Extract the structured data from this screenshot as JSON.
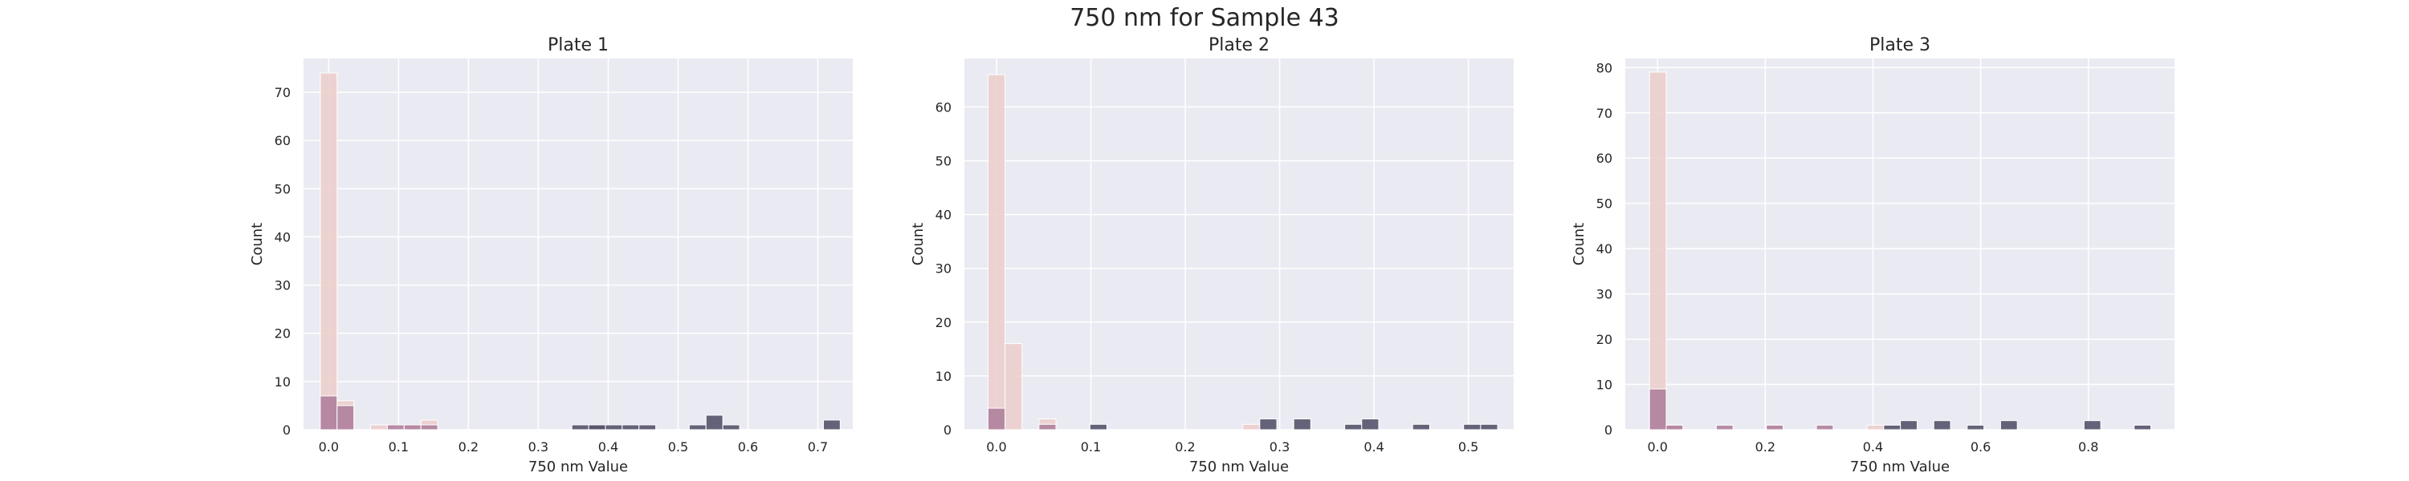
{
  "figure": {
    "suptitle": "750 nm for Sample 43"
  },
  "colors": {
    "background": "#eaeaf2",
    "grid": "#ffffff",
    "light": "#ebcfcc",
    "mid": "#ad7b9a",
    "dark": "#4b4a63",
    "bar_edge": "#ffffff"
  },
  "chart_data": [
    {
      "type": "bar",
      "title": "Plate 1",
      "xlabel": "750 nm Value",
      "ylabel": "Count",
      "xlim": [
        -0.036,
        0.75
      ],
      "ylim": [
        0,
        77
      ],
      "xticks": [
        0.0,
        0.1,
        0.2,
        0.3,
        0.4,
        0.5,
        0.6,
        0.7
      ],
      "xtick_labels": [
        "0.0",
        "0.1",
        "0.2",
        "0.3",
        "0.4",
        "0.5",
        "0.6",
        "0.7"
      ],
      "yticks": [
        0,
        10,
        20,
        30,
        40,
        50,
        60,
        70
      ],
      "ytick_labels": [
        "0",
        "10",
        "20",
        "30",
        "40",
        "50",
        "60",
        "70"
      ],
      "grid": true,
      "bin_width": 0.024,
      "series": [
        {
          "color_key": "light",
          "bins": [
            [
              -0.012,
              74
            ],
            [
              0.012,
              6
            ],
            [
              0.06,
              1
            ],
            [
              0.108,
              1
            ],
            [
              0.132,
              2
            ]
          ]
        },
        {
          "color_key": "mid",
          "bins": [
            [
              -0.012,
              7
            ],
            [
              0.012,
              5
            ],
            [
              0.084,
              1
            ],
            [
              0.108,
              1
            ],
            [
              0.132,
              1
            ],
            [
              0.372,
              1
            ]
          ]
        },
        {
          "color_key": "dark",
          "bins": [
            [
              0.348,
              1
            ],
            [
              0.372,
              1
            ],
            [
              0.396,
              1
            ],
            [
              0.42,
              1
            ],
            [
              0.444,
              1
            ],
            [
              0.516,
              1
            ],
            [
              0.54,
              3
            ],
            [
              0.564,
              1
            ],
            [
              0.708,
              2
            ]
          ]
        }
      ]
    },
    {
      "type": "bar",
      "title": "Plate 2",
      "xlabel": "750 nm Value",
      "ylabel": "Count",
      "xlim": [
        -0.034,
        0.548
      ],
      "ylim": [
        0,
        69
      ],
      "xticks": [
        0.0,
        0.1,
        0.2,
        0.3,
        0.4,
        0.5
      ],
      "xtick_labels": [
        "0.0",
        "0.1",
        "0.2",
        "0.3",
        "0.4",
        "0.5"
      ],
      "yticks": [
        0,
        10,
        20,
        30,
        40,
        50,
        60
      ],
      "ytick_labels": [
        "0",
        "10",
        "20",
        "30",
        "40",
        "50",
        "60"
      ],
      "grid": true,
      "bin_width": 0.018,
      "series": [
        {
          "color_key": "light",
          "bins": [
            [
              -0.009,
              66
            ],
            [
              0.009,
              16
            ],
            [
              0.045,
              2
            ],
            [
              0.261,
              1
            ]
          ]
        },
        {
          "color_key": "mid",
          "bins": [
            [
              -0.009,
              4
            ],
            [
              0.045,
              1
            ]
          ]
        },
        {
          "color_key": "dark",
          "bins": [
            [
              0.099,
              1
            ],
            [
              0.279,
              2
            ],
            [
              0.315,
              2
            ],
            [
              0.369,
              1
            ],
            [
              0.387,
              2
            ],
            [
              0.441,
              1
            ],
            [
              0.495,
              1
            ],
            [
              0.513,
              1
            ]
          ]
        }
      ]
    },
    {
      "type": "bar",
      "title": "Plate 3",
      "xlabel": "750 nm Value",
      "ylabel": "Count",
      "xlim": [
        -0.06,
        0.96
      ],
      "ylim": [
        0,
        82
      ],
      "xticks": [
        0.0,
        0.2,
        0.4,
        0.6,
        0.8
      ],
      "xtick_labels": [
        "0.0",
        "0.2",
        "0.4",
        "0.6",
        "0.8"
      ],
      "yticks": [
        0,
        10,
        20,
        30,
        40,
        50,
        60,
        70,
        80
      ],
      "ytick_labels": [
        "0",
        "10",
        "20",
        "30",
        "40",
        "50",
        "60",
        "70",
        "80"
      ],
      "grid": true,
      "bin_width": 0.031,
      "series": [
        {
          "color_key": "light",
          "bins": [
            [
              -0.015,
              79
            ],
            [
              0.016,
              1
            ],
            [
              0.202,
              1
            ],
            [
              0.389,
              1
            ]
          ]
        },
        {
          "color_key": "mid",
          "bins": [
            [
              -0.015,
              9
            ],
            [
              0.016,
              1
            ],
            [
              0.109,
              1
            ],
            [
              0.202,
              1
            ],
            [
              0.295,
              1
            ]
          ]
        },
        {
          "color_key": "dark",
          "bins": [
            [
              0.42,
              1
            ],
            [
              0.451,
              2
            ],
            [
              0.513,
              2
            ],
            [
              0.575,
              1
            ],
            [
              0.637,
              2
            ],
            [
              0.792,
              2
            ],
            [
              0.885,
              1
            ]
          ]
        }
      ]
    }
  ]
}
